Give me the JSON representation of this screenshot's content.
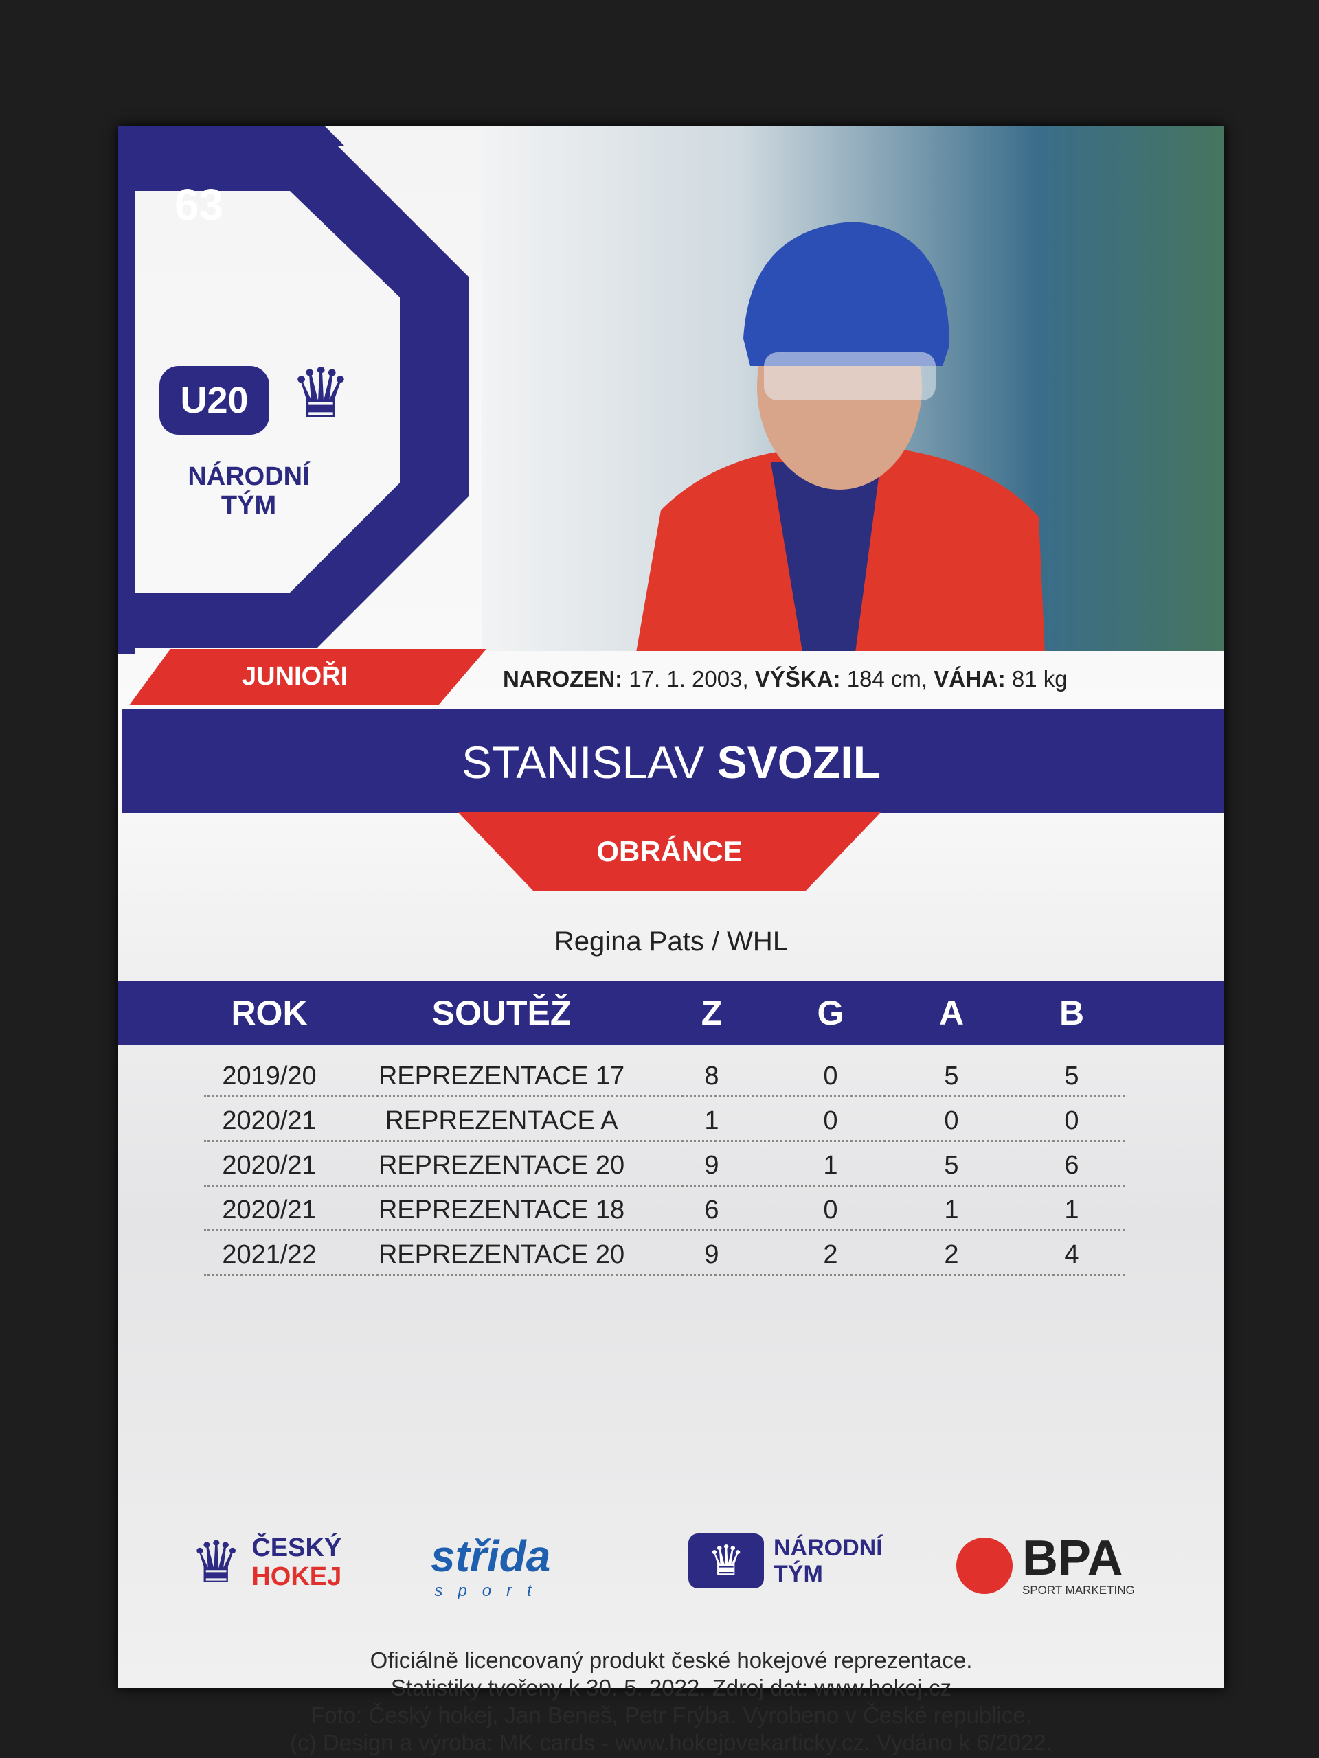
{
  "card": {
    "number": "63",
    "team_logo": {
      "badge": "U20",
      "line1": "NÁRODNÍ",
      "line2": "TÝM"
    },
    "category": "JUNIOŘI",
    "bio": {
      "born_label": "NAROZEN:",
      "born": "17. 1. 2003,",
      "height_label": "VÝŠKA:",
      "height": "184 cm,",
      "weight_label": "VÁHA:",
      "weight": "81 kg"
    },
    "first_name": "STANISLAV",
    "last_name": "SVOZIL",
    "position": "OBRÁNCE",
    "club": "Regina Pats / WHL"
  },
  "colors": {
    "navy": "#2d2a84",
    "red": "#e0312c"
  },
  "stats": {
    "headers": [
      "ROK",
      "SOUTĚŽ",
      "Z",
      "G",
      "A",
      "B"
    ],
    "rows": [
      [
        "2019/20",
        "REPREZENTACE 17",
        "8",
        "0",
        "5",
        "5"
      ],
      [
        "2020/21",
        "REPREZENTACE A",
        "1",
        "0",
        "0",
        "0"
      ],
      [
        "2020/21",
        "REPREZENTACE 20",
        "9",
        "1",
        "5",
        "6"
      ],
      [
        "2020/21",
        "REPREZENTACE 18",
        "6",
        "0",
        "1",
        "1"
      ],
      [
        "2021/22",
        "REPREZENTACE 20",
        "9",
        "2",
        "2",
        "4"
      ]
    ]
  },
  "sponsors": {
    "cesky_hokej": [
      "ČESKÝ",
      "HOKEJ"
    ],
    "strida": [
      "střida",
      "sport"
    ],
    "narodni_tym": [
      "NÁRODNÍ",
      "TÝM"
    ],
    "bpa": [
      "BPA",
      "SPORT MARKETING"
    ]
  },
  "footer": [
    "Oficiálně licencovaný produkt české hokejové reprezentace.",
    "Statistiky tvořeny k 30. 5. 2022. Zdroj dat: www.hokej.cz",
    "Foto: Český hokej, Jan Beneš, Petr Frýba. Vyrobeno v České republice.",
    "(c) Design a výroba: MK cards - www.hokejovekarticky.cz. Vydáno k 6/2022."
  ]
}
